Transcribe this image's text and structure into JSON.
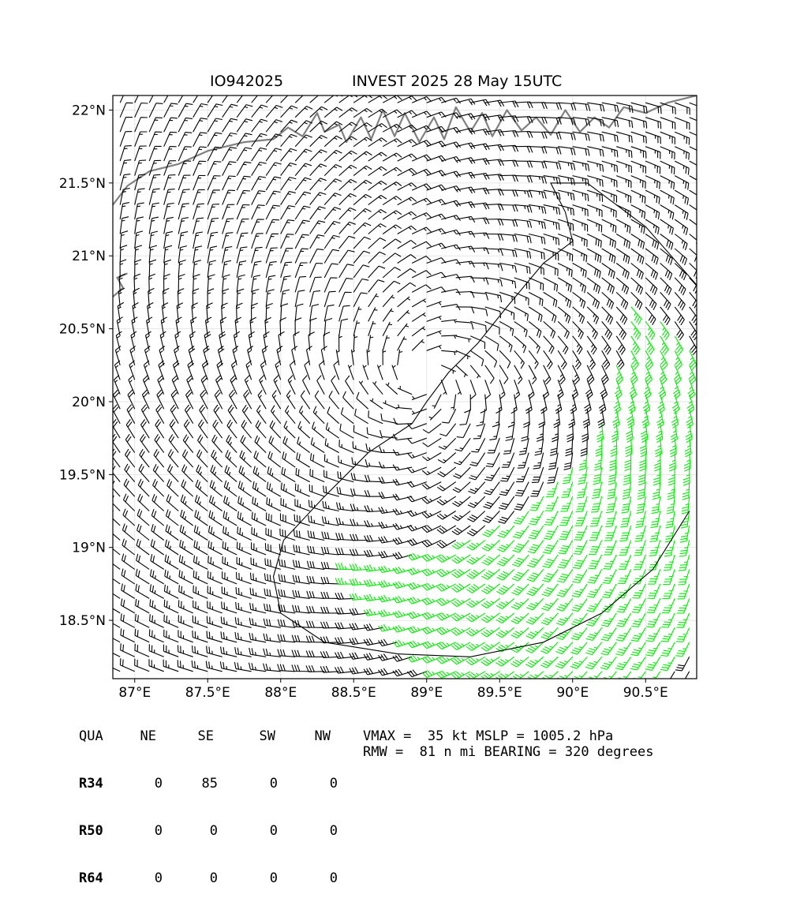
{
  "title": {
    "storm_id": "IO942025",
    "description": "INVEST 2025 28 May 15UTC"
  },
  "map": {
    "lon_range": [
      86.85,
      90.85
    ],
    "lat_range": [
      18.1,
      22.1
    ],
    "lon_ticks": [
      {
        "value": 87.0,
        "label": "87°E"
      },
      {
        "value": 87.5,
        "label": "87.5°E"
      },
      {
        "value": 88.0,
        "label": "88°E"
      },
      {
        "value": 88.5,
        "label": "88.5°E"
      },
      {
        "value": 89.0,
        "label": "89°E"
      },
      {
        "value": 89.5,
        "label": "89.5°E"
      },
      {
        "value": 90.0,
        "label": "90°E"
      },
      {
        "value": 90.5,
        "label": "90.5°E"
      }
    ],
    "lat_ticks": [
      {
        "value": 18.5,
        "label": "18.5°N"
      },
      {
        "value": 19.0,
        "label": "19°N"
      },
      {
        "value": 19.5,
        "label": "19.5°N"
      },
      {
        "value": 20.0,
        "label": "20°N"
      },
      {
        "value": 20.5,
        "label": "20.5°N"
      },
      {
        "value": 21.0,
        "label": "21°N"
      },
      {
        "value": 21.5,
        "label": "21.5°N"
      },
      {
        "value": 22.0,
        "label": "22°N"
      }
    ],
    "storm_center": {
      "lon": 89.0,
      "lat": 20.15
    },
    "barb_colors": {
      "below_34kt": "#000000",
      "34_to_50kt": "#00ee00",
      "50_to_64kt": "#ffa500"
    },
    "coastline_color": "#808080"
  },
  "wind_radii_table": {
    "header": [
      "QUA",
      "NE",
      "SE",
      "SW",
      "NW"
    ],
    "rows": [
      {
        "label": "R34",
        "values": [
          "0",
          "85",
          "0",
          "0"
        ]
      },
      {
        "label": "R50",
        "values": [
          "0",
          "0",
          "0",
          "0"
        ]
      },
      {
        "label": "R64",
        "values": [
          "0",
          "0",
          "0",
          "0"
        ]
      }
    ]
  },
  "stats": {
    "line1": "VMAX =  35 kt MSLP = 1005.2 hPa",
    "line2": "RMW =  81 n mi BEARING = 320 degrees"
  }
}
